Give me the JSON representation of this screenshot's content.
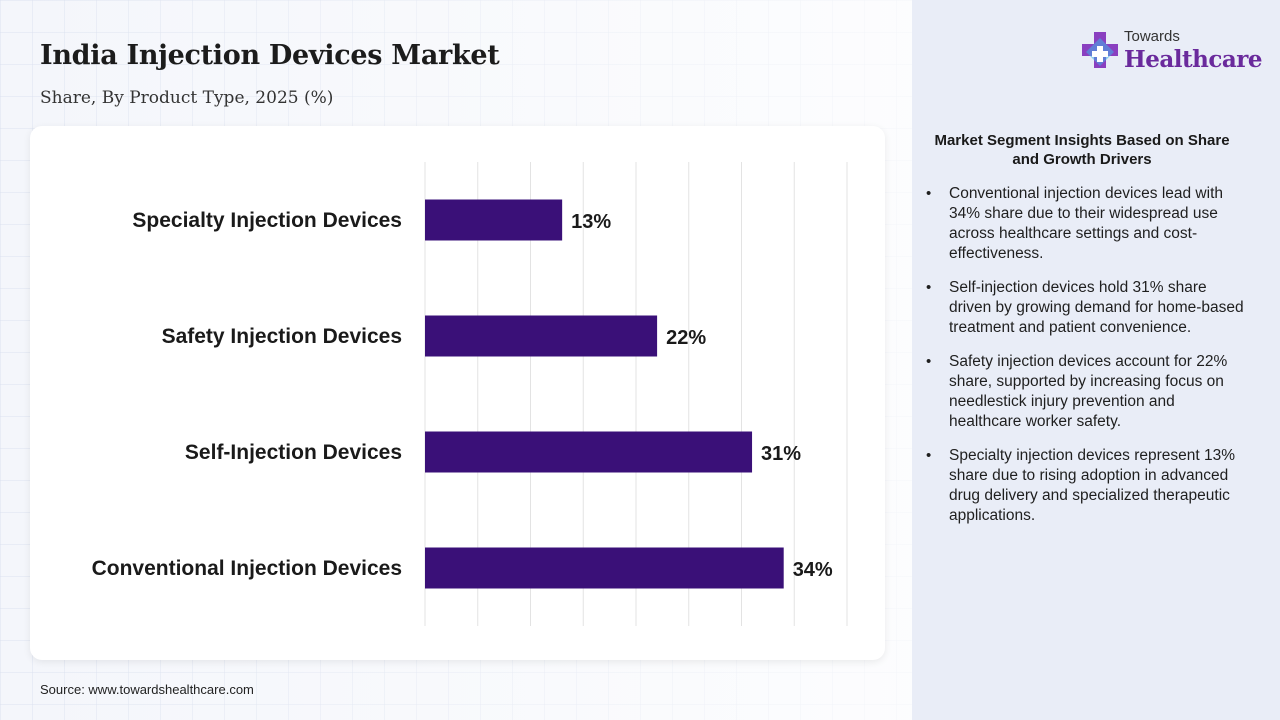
{
  "header": {
    "title": "India Injection Devices Market",
    "subtitle": "Share, By Product Type, 2025 (%)"
  },
  "logo": {
    "line1": "Towards",
    "line2": "Healthcare",
    "icon": "medical-cross-icon"
  },
  "chart_data": {
    "type": "bar",
    "orientation": "horizontal",
    "categories": [
      "Specialty Injection Devices",
      "Safety Injection Devices",
      "Self-Injection Devices",
      "Conventional Injection Devices"
    ],
    "values": [
      13,
      22,
      31,
      34
    ],
    "value_labels": [
      "13%",
      "22%",
      "31%",
      "34%"
    ],
    "xlim": [
      0,
      40
    ],
    "grid": true,
    "bar_color": "#3a1078"
  },
  "insights": {
    "title": "Market Segment Insights Based on Share and Growth Drivers",
    "items": [
      "Conventional injection devices lead with 34% share due to their widespread use across healthcare settings and cost-effectiveness.",
      "Self-injection devices hold 31% share driven by growing demand for home-based treatment and patient convenience.",
      "Safety injection devices account for 22% share, supported by increasing focus on needlestick injury prevention and healthcare worker safety.",
      "Specialty injection devices represent 13% share due to rising adoption in advanced drug delivery and specialized therapeutic applications."
    ]
  },
  "footer": {
    "source": "Source: www.towardshealthcare.com"
  },
  "colors": {
    "accent": "#3a1078",
    "brand": "#6a2a9c",
    "panel": "#e9edf7"
  }
}
